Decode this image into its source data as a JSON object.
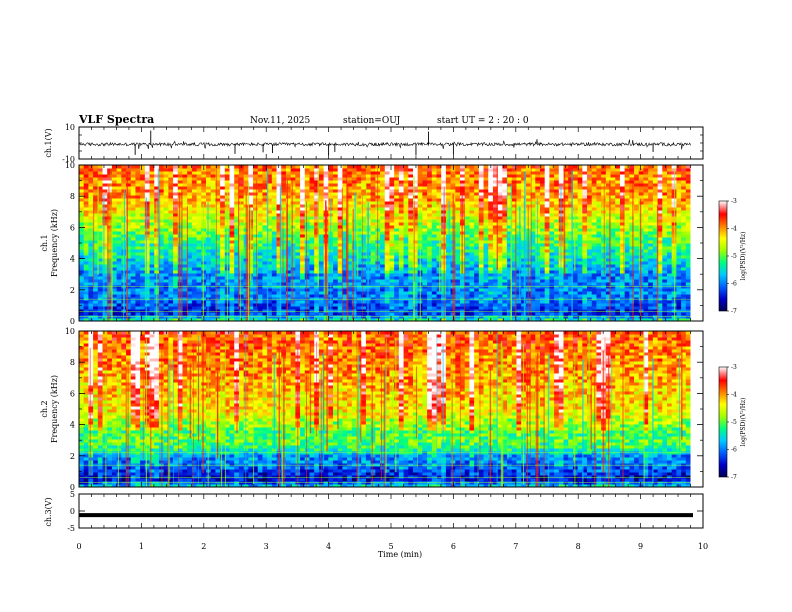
{
  "header": {
    "title": "VLF Spectra",
    "date": "Nov.11, 2025",
    "station": "station=OUJ",
    "start": "start  UT =  2 : 20 : 0"
  },
  "colors": {
    "colormap": [
      "#000050",
      "#0000c8",
      "#0060ff",
      "#00c8ff",
      "#00ff80",
      "#a0ff00",
      "#ffff00",
      "#ff8000",
      "#ff0000",
      "#ffffff"
    ],
    "waveform": "#000000",
    "frame": "#000000"
  },
  "chart_data": [
    {
      "type": "line",
      "name": "ch1-waveform-panel",
      "ylabel": "ch.1(V)",
      "ylim": [
        -10,
        10
      ],
      "ytick_labels": [
        "10",
        "-10"
      ],
      "xlim": [
        0,
        10
      ],
      "description_values": {
        "baseline": -0.8,
        "noise_amplitude": 2.0,
        "spike_max": 10
      }
    },
    {
      "type": "heatmap",
      "name": "ch1-spectrogram-panel",
      "ylabel": "ch.1\nFrequency (kHz)",
      "ylim": [
        0,
        10
      ],
      "ytick_labels": [
        "0",
        "2",
        "4",
        "6",
        "8",
        "10"
      ],
      "xlim": [
        0,
        10
      ],
      "data_end_min": 9.8,
      "colorbar": {
        "label": "log(PSD)(V²/Hz)",
        "range": [
          -7,
          -3
        ],
        "tick_labels": [
          "-3",
          "-4",
          "-5",
          "-6",
          "-7"
        ]
      },
      "band_profile": {
        "freq_khz": [
          0,
          0.5,
          1,
          1.5,
          2,
          3,
          4,
          5,
          6,
          7,
          8,
          9,
          10
        ],
        "log_psd": [
          -5.2,
          -6.4,
          -6.2,
          -6.0,
          -6.0,
          -5.9,
          -5.5,
          -5.2,
          -4.8,
          -4.4,
          -4.0,
          -3.9,
          -3.8
        ]
      }
    },
    {
      "type": "heatmap",
      "name": "ch2-spectrogram-panel",
      "ylabel": "ch.2\nFrequency (kHz)",
      "ylim": [
        0,
        10
      ],
      "ytick_labels": [
        "0",
        "2",
        "4",
        "6",
        "8",
        "10"
      ],
      "xlim": [
        0,
        10
      ],
      "data_end_min": 9.8,
      "colorbar": {
        "label": "log(PSD)(V²/Hz)",
        "range": [
          -7,
          -3
        ],
        "tick_labels": [
          "-3",
          "-4",
          "-5",
          "-6",
          "-7"
        ]
      },
      "band_profile": {
        "freq_khz": [
          0,
          0.5,
          1,
          1.5,
          2,
          2.5,
          3,
          3.5,
          4,
          5,
          6,
          7,
          8,
          9,
          10
        ],
        "log_psd": [
          -5.5,
          -6.6,
          -6.3,
          -6.0,
          -5.9,
          -5.2,
          -5.0,
          -5.1,
          -4.8,
          -4.3,
          -4.2,
          -4.0,
          -3.9,
          -3.8,
          -3.7
        ]
      }
    },
    {
      "type": "line",
      "name": "ch3-waveform-panel",
      "ylabel": "ch.3(V)",
      "ylim": [
        -5,
        5
      ],
      "ytick_labels": [
        "5",
        "0",
        "-5"
      ],
      "xlim": [
        0,
        10
      ],
      "values": {
        "level": -1.2
      }
    }
  ],
  "xaxis": {
    "label": "Time (min)",
    "tick_labels": [
      "0",
      "1",
      "2",
      "3",
      "4",
      "5",
      "6",
      "7",
      "8",
      "9",
      "10"
    ]
  }
}
